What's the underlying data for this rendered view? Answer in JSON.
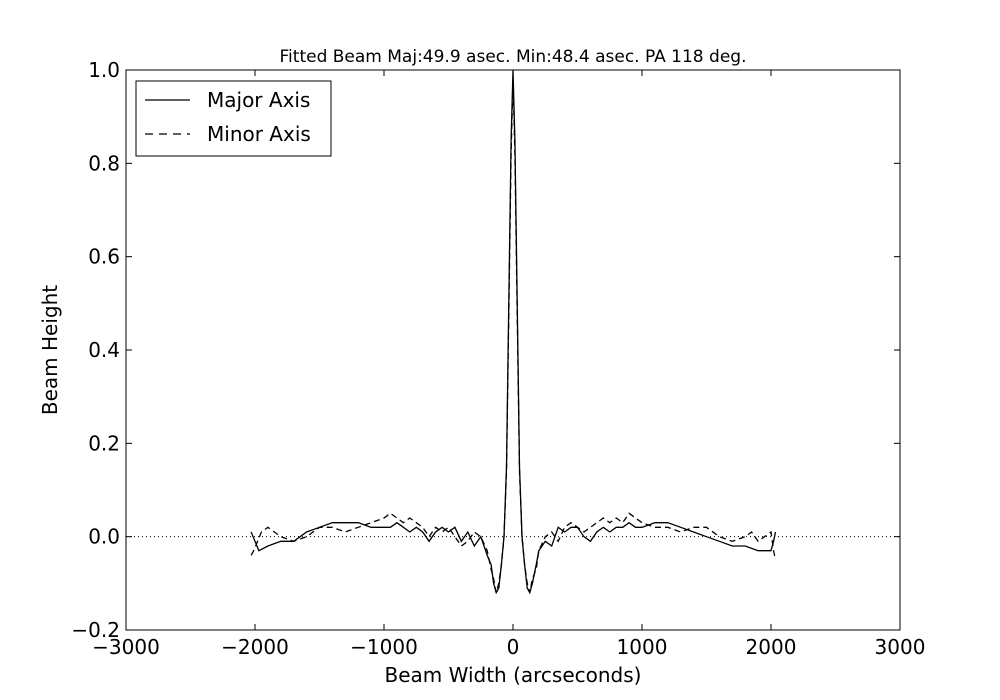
{
  "chart_data": {
    "type": "line",
    "title": "Fitted Beam Maj:49.9 asec. Min:48.4 asec. PA 118 deg.",
    "xlabel": "Beam Width (arcseconds)",
    "ylabel": "Beam Height",
    "xlim": [
      -3000,
      3000
    ],
    "ylim": [
      -0.2,
      1.0
    ],
    "xticks": [
      -3000,
      -2000,
      -1000,
      0,
      1000,
      2000,
      3000
    ],
    "xtick_labels": [
      "−3000",
      "−2000",
      "−1000",
      "0",
      "1000",
      "2000",
      "3000"
    ],
    "yticks": [
      -0.2,
      0.0,
      0.2,
      0.4,
      0.6,
      0.8,
      1.0
    ],
    "ytick_labels": [
      "−0.2",
      "0.0",
      "0.2",
      "0.4",
      "0.6",
      "0.8",
      "1.0"
    ],
    "grid": false,
    "legend_position": "top-left",
    "zero_line": {
      "y": 0.0,
      "style": "dotted"
    },
    "series": [
      {
        "name": "Major Axis",
        "style": "solid",
        "color": "#000000",
        "x": [
          -2030,
          -2000,
          -1970,
          -1900,
          -1800,
          -1700,
          -1600,
          -1500,
          -1400,
          -1300,
          -1200,
          -1100,
          -1000,
          -950,
          -900,
          -850,
          -800,
          -750,
          -700,
          -650,
          -600,
          -550,
          -500,
          -450,
          -400,
          -350,
          -300,
          -250,
          -200,
          -170,
          -150,
          -130,
          -110,
          -90,
          -70,
          -50,
          -30,
          -15,
          0,
          15,
          30,
          50,
          70,
          90,
          110,
          130,
          150,
          180,
          200,
          250,
          300,
          350,
          400,
          450,
          500,
          550,
          600,
          650,
          700,
          750,
          800,
          850,
          900,
          950,
          1000,
          1100,
          1200,
          1300,
          1400,
          1500,
          1600,
          1700,
          1800,
          1900,
          2000,
          2020,
          2035
        ],
        "y": [
          0.01,
          -0.01,
          -0.03,
          -0.02,
          -0.01,
          -0.01,
          0.01,
          0.02,
          0.03,
          0.03,
          0.03,
          0.02,
          0.02,
          0.02,
          0.03,
          0.02,
          0.01,
          0.02,
          0.01,
          -0.01,
          0.01,
          0.02,
          0.01,
          0.02,
          -0.01,
          0.01,
          -0.02,
          0.0,
          -0.04,
          -0.06,
          -0.1,
          -0.12,
          -0.11,
          -0.06,
          0.0,
          0.15,
          0.55,
          0.85,
          1.0,
          0.85,
          0.55,
          0.15,
          0.0,
          -0.06,
          -0.11,
          -0.12,
          -0.1,
          -0.06,
          -0.03,
          -0.01,
          -0.02,
          0.02,
          0.01,
          0.02,
          0.02,
          0.0,
          -0.01,
          0.01,
          0.02,
          0.01,
          0.02,
          0.02,
          0.03,
          0.02,
          0.02,
          0.03,
          0.03,
          0.02,
          0.01,
          0.0,
          -0.01,
          -0.02,
          -0.02,
          -0.03,
          -0.03,
          -0.01,
          0.01
        ]
      },
      {
        "name": "Minor Axis",
        "style": "dashed",
        "color": "#000000",
        "x": [
          -2030,
          -2010,
          -1980,
          -1950,
          -1900,
          -1850,
          -1800,
          -1700,
          -1600,
          -1500,
          -1400,
          -1300,
          -1200,
          -1100,
          -1000,
          -950,
          -900,
          -850,
          -800,
          -750,
          -700,
          -650,
          -600,
          -550,
          -500,
          -450,
          -400,
          -350,
          -300,
          -250,
          -200,
          -170,
          -150,
          -130,
          -110,
          -90,
          -70,
          -50,
          -30,
          -15,
          0,
          15,
          30,
          50,
          70,
          90,
          110,
          130,
          150,
          180,
          200,
          250,
          300,
          350,
          400,
          450,
          500,
          550,
          600,
          650,
          700,
          750,
          800,
          850,
          900,
          950,
          1000,
          1100,
          1200,
          1300,
          1400,
          1500,
          1600,
          1700,
          1800,
          1850,
          1900,
          1950,
          2000,
          2020,
          2035
        ],
        "y": [
          -0.04,
          -0.03,
          -0.01,
          0.01,
          0.02,
          0.01,
          0.0,
          -0.01,
          0.0,
          0.02,
          0.02,
          0.01,
          0.02,
          0.03,
          0.04,
          0.05,
          0.04,
          0.03,
          0.04,
          0.03,
          0.02,
          0.0,
          0.02,
          0.01,
          0.02,
          0.0,
          -0.02,
          -0.01,
          0.01,
          0.0,
          -0.03,
          -0.07,
          -0.09,
          -0.12,
          -0.1,
          -0.06,
          0.0,
          0.14,
          0.52,
          0.82,
          0.98,
          0.82,
          0.52,
          0.14,
          0.0,
          -0.06,
          -0.1,
          -0.12,
          -0.09,
          -0.07,
          -0.03,
          0.0,
          0.01,
          -0.01,
          0.02,
          0.03,
          0.02,
          0.01,
          0.02,
          0.03,
          0.04,
          0.03,
          0.04,
          0.03,
          0.05,
          0.04,
          0.03,
          0.02,
          0.02,
          0.01,
          0.02,
          0.02,
          0.0,
          -0.01,
          0.0,
          0.01,
          -0.01,
          0.0,
          0.01,
          -0.03,
          -0.05
        ]
      }
    ]
  }
}
